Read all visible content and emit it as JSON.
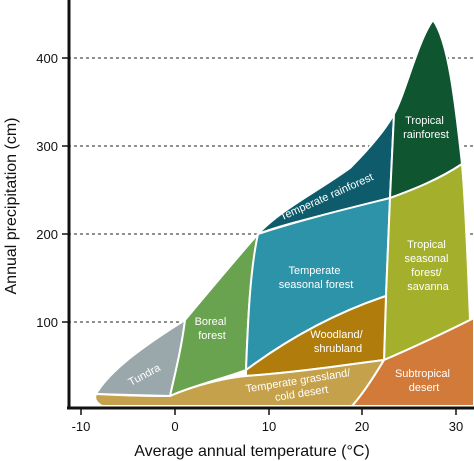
{
  "chart_data": {
    "type": "area",
    "title": "",
    "xlabel": "Average annual temperature (°C)",
    "ylabel": "Annual precipitation (cm)",
    "xlim": [
      -12,
      32
    ],
    "ylim": [
      0,
      450
    ],
    "x_ticks": [
      -10,
      0,
      10,
      20,
      30
    ],
    "y_ticks": [
      100,
      200,
      300,
      400
    ],
    "grid": "dashed horizontal lines at 100, 200, 300, 400",
    "biomes": [
      {
        "id": "tundra",
        "label": [
          "Tundra"
        ],
        "color": "#9aa8ac"
      },
      {
        "id": "boreal-forest",
        "label": [
          "Boreal",
          "forest"
        ],
        "color": "#6aa350"
      },
      {
        "id": "temperate-rainforest",
        "label": [
          "Temperate rainforest"
        ],
        "color": "#0d5b6b"
      },
      {
        "id": "temperate-seasonal-forest",
        "label": [
          "Temperate",
          "seasonal forest"
        ],
        "color": "#2c93a8"
      },
      {
        "id": "tropical-rainforest",
        "label": [
          "Tropical",
          "rainforest"
        ],
        "color": "#0e5530"
      },
      {
        "id": "tropical-seasonal-forest-savanna",
        "label": [
          "Tropical",
          "seasonal",
          "forest/",
          "savanna"
        ],
        "color": "#a4b02c"
      },
      {
        "id": "woodland-shrubland",
        "label": [
          "Woodland/",
          "shrubland"
        ],
        "color": "#b07d0c"
      },
      {
        "id": "temperate-grassland-cold-desert",
        "label": [
          "Temperate grassland/",
          "cold desert"
        ],
        "color": "#c4a14a"
      },
      {
        "id": "subtropical-desert",
        "label": [
          "Subtropical",
          "desert"
        ],
        "color": "#d27a3a"
      }
    ]
  }
}
